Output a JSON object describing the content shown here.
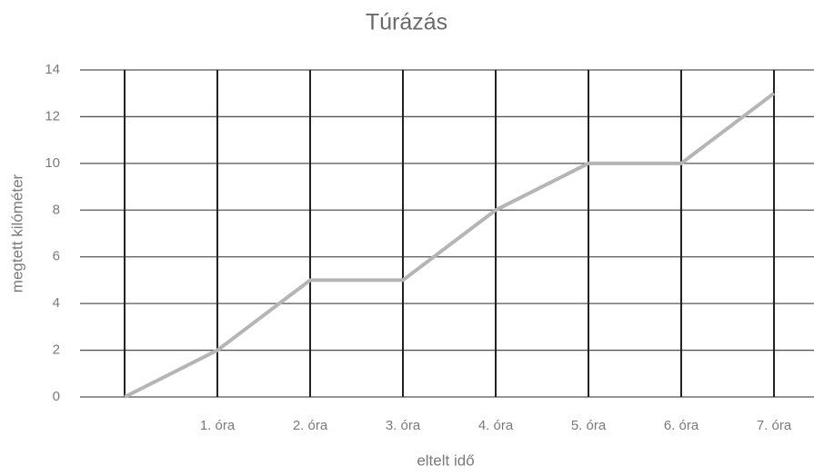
{
  "chart_data": {
    "type": "line",
    "title": "Túrázás",
    "x_label": "eltelt idő",
    "y_label": "megtett kilóméter",
    "categories": [
      null,
      "1. óra",
      "2. óra",
      "3. óra",
      "4. óra",
      "5. óra",
      "6. óra",
      "7. óra"
    ],
    "values": [
      0,
      2,
      5,
      5,
      8,
      10,
      10,
      13
    ],
    "color": "#b5b5b5",
    "ylim": [
      0,
      14
    ],
    "yticks": [
      0,
      2,
      4,
      6,
      8,
      10,
      12,
      14
    ],
    "grid": true
  }
}
